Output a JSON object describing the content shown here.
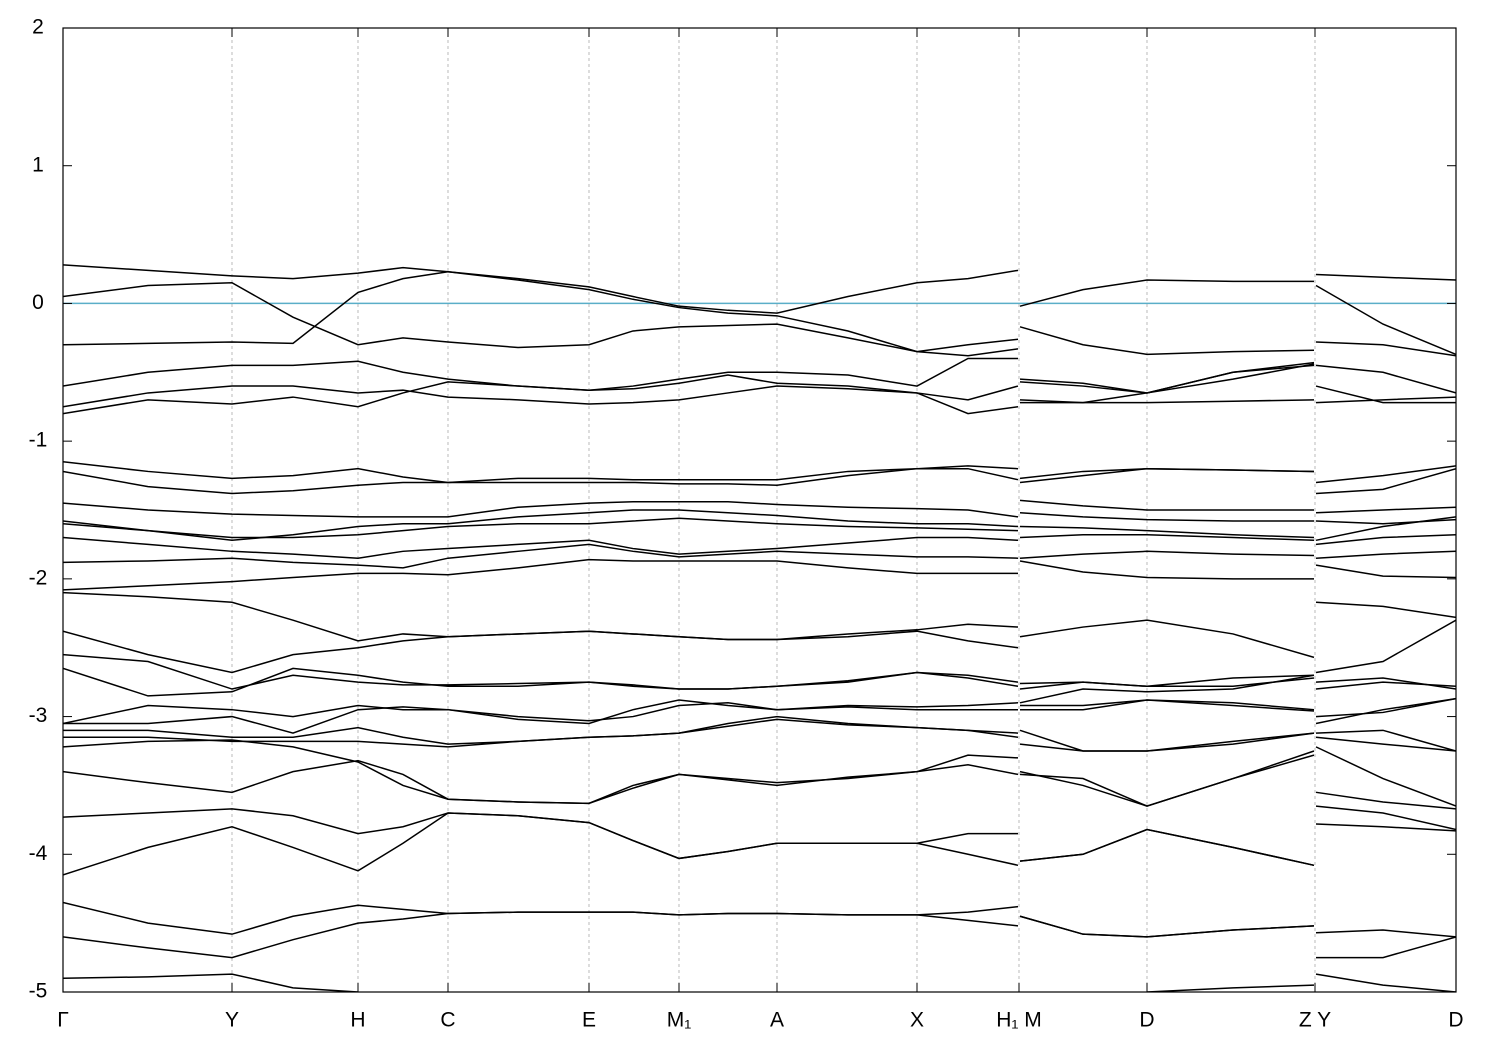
{
  "chart_data": {
    "type": "line",
    "color": "#000000",
    "fermi_level": 0,
    "fermi_color": "#5aaec8",
    "grid": "x",
    "xlim": [
      0,
      13.93
    ],
    "ylim": [
      -5,
      2
    ],
    "yticks": [
      2,
      1,
      0,
      -1,
      -2,
      -3,
      -4,
      -5
    ],
    "xticks": [
      {
        "value": 0,
        "label": "Γ"
      },
      {
        "value": 1.69,
        "label": "Y"
      },
      {
        "value": 2.95,
        "label": "H"
      },
      {
        "value": 3.85,
        "label": "C"
      },
      {
        "value": 5.26,
        "label": "E"
      },
      {
        "value": 6.16,
        "label": "M₁"
      },
      {
        "value": 7.14,
        "label": "A"
      },
      {
        "value": 8.54,
        "label": "X"
      },
      {
        "value": 9.56,
        "label": "H₁ M"
      },
      {
        "value": 10.84,
        "label": "D"
      },
      {
        "value": 12.52,
        "label": "Z Y"
      },
      {
        "value": 13.93,
        "label": "D"
      }
    ],
    "x": [
      0,
      0.85,
      1.69,
      2.3,
      2.95,
      3.4,
      3.85,
      4.55,
      5.26,
      5.7,
      6.16,
      6.65,
      7.14,
      7.85,
      8.54,
      9.05,
      9.55,
      9.56,
      9.57,
      10.2,
      10.84,
      11.7,
      12.51,
      12.52,
      12.53,
      13.2,
      13.93
    ],
    "series": [
      {
        "values": [
          0.28,
          0.24,
          0.2,
          0.18,
          0.22,
          0.26,
          0.23,
          0.18,
          0.12,
          0.05,
          -0.02,
          -0.05,
          -0.07,
          0.05,
          0.15,
          0.18,
          0.24,
          null,
          -0.02,
          0.1,
          0.17,
          0.16,
          0.16,
          null,
          0.21,
          0.19,
          0.17
        ]
      },
      {
        "values": [
          0.05,
          0.13,
          0.15,
          -0.1,
          -0.3,
          -0.25,
          -0.28,
          -0.32,
          -0.3,
          -0.2,
          -0.17,
          -0.16,
          -0.15,
          -0.25,
          -0.35,
          -0.3,
          -0.26,
          null,
          -0.17,
          -0.3,
          -0.37,
          -0.35,
          -0.34,
          null,
          0.13,
          -0.15,
          -0.37
        ]
      },
      {
        "values": [
          -0.3,
          -0.29,
          -0.28,
          -0.29,
          0.08,
          0.18,
          0.23,
          0.17,
          0.1,
          0.03,
          -0.03,
          -0.07,
          -0.09,
          -0.2,
          -0.35,
          -0.38,
          -0.33,
          null,
          -0.55,
          -0.58,
          -0.65,
          -0.5,
          -0.45,
          null,
          -0.28,
          -0.3,
          -0.38
        ]
      },
      {
        "values": [
          -0.6,
          -0.5,
          -0.45,
          -0.45,
          -0.42,
          -0.5,
          -0.55,
          -0.6,
          -0.63,
          -0.6,
          -0.55,
          -0.5,
          -0.5,
          -0.52,
          -0.6,
          -0.4,
          -0.4,
          null,
          -0.57,
          -0.6,
          -0.65,
          -0.5,
          -0.43,
          null,
          -0.45,
          -0.5,
          -0.65
        ]
      },
      {
        "values": [
          -0.75,
          -0.65,
          -0.6,
          -0.6,
          -0.65,
          -0.63,
          -0.68,
          -0.7,
          -0.73,
          -0.72,
          -0.7,
          -0.65,
          -0.6,
          -0.62,
          -0.65,
          -0.7,
          -0.6,
          null,
          -0.7,
          -0.72,
          -0.72,
          -0.71,
          -0.7,
          null,
          -0.6,
          -0.72,
          -0.72
        ]
      },
      {
        "values": [
          -0.8,
          -0.7,
          -0.73,
          -0.68,
          -0.75,
          -0.65,
          -0.57,
          -0.6,
          -0.63,
          -0.62,
          -0.58,
          -0.52,
          -0.58,
          -0.6,
          -0.65,
          -0.8,
          -0.75,
          null,
          -0.72,
          -0.72,
          -0.65,
          -0.55,
          -0.44,
          null,
          -0.72,
          -0.7,
          -0.68
        ]
      },
      {
        "values": [
          -1.15,
          -1.22,
          -1.27,
          -1.25,
          -1.2,
          -1.26,
          -1.3,
          -1.27,
          -1.27,
          -1.28,
          -1.28,
          -1.28,
          -1.28,
          -1.22,
          -1.2,
          -1.18,
          -1.2,
          null,
          -1.27,
          -1.22,
          -1.2,
          -1.21,
          -1.22,
          null,
          -1.3,
          -1.25,
          -1.18
        ]
      },
      {
        "values": [
          -1.22,
          -1.33,
          -1.38,
          -1.36,
          -1.32,
          -1.3,
          -1.3,
          -1.3,
          -1.3,
          -1.3,
          -1.31,
          -1.31,
          -1.32,
          -1.25,
          -1.2,
          -1.2,
          -1.28,
          null,
          -1.3,
          -1.25,
          -1.2,
          -1.21,
          -1.22,
          null,
          -1.38,
          -1.35,
          -1.2
        ]
      },
      {
        "values": [
          -1.45,
          -1.5,
          -1.53,
          -1.54,
          -1.55,
          -1.55,
          -1.55,
          -1.48,
          -1.45,
          -1.44,
          -1.44,
          -1.44,
          -1.46,
          -1.48,
          -1.49,
          -1.5,
          -1.55,
          null,
          -1.43,
          -1.47,
          -1.5,
          -1.5,
          -1.5,
          null,
          -1.52,
          -1.5,
          -1.48
        ]
      },
      {
        "values": [
          -1.58,
          -1.65,
          -1.72,
          -1.68,
          -1.62,
          -1.6,
          -1.6,
          -1.55,
          -1.52,
          -1.5,
          -1.5,
          -1.52,
          -1.54,
          -1.58,
          -1.6,
          -1.6,
          -1.62,
          null,
          -1.52,
          -1.55,
          -1.57,
          -1.58,
          -1.58,
          null,
          -1.58,
          -1.6,
          -1.57
        ]
      },
      {
        "values": [
          -1.6,
          -1.65,
          -1.7,
          -1.7,
          -1.68,
          -1.65,
          -1.62,
          -1.6,
          -1.6,
          -1.58,
          -1.56,
          -1.58,
          -1.6,
          -1.62,
          -1.63,
          -1.64,
          -1.65,
          null,
          -1.62,
          -1.63,
          -1.65,
          -1.68,
          -1.7,
          null,
          -1.72,
          -1.62,
          -1.55
        ]
      },
      {
        "values": [
          -1.7,
          -1.75,
          -1.8,
          -1.82,
          -1.85,
          -1.8,
          -1.78,
          -1.75,
          -1.72,
          -1.78,
          -1.82,
          -1.8,
          -1.78,
          -1.74,
          -1.7,
          -1.7,
          -1.72,
          null,
          -1.7,
          -1.68,
          -1.68,
          -1.7,
          -1.72,
          null,
          -1.75,
          -1.7,
          -1.68
        ]
      },
      {
        "values": [
          -1.88,
          -1.87,
          -1.85,
          -1.88,
          -1.9,
          -1.92,
          -1.85,
          -1.8,
          -1.75,
          -1.8,
          -1.84,
          -1.82,
          -1.8,
          -1.82,
          -1.84,
          -1.84,
          -1.85,
          null,
          -1.85,
          -1.82,
          -1.8,
          -1.82,
          -1.83,
          null,
          -1.85,
          -1.82,
          -1.8
        ]
      },
      {
        "values": [
          -2.08,
          -2.05,
          -2.02,
          -1.99,
          -1.96,
          -1.96,
          -1.97,
          -1.92,
          -1.86,
          -1.87,
          -1.87,
          -1.87,
          -1.87,
          -1.92,
          -1.96,
          -1.96,
          -1.96,
          null,
          -1.87,
          -1.95,
          -1.99,
          -2,
          -2,
          null,
          -1.9,
          -1.98,
          -1.99
        ]
      },
      {
        "values": [
          -2.1,
          -2.13,
          -2.17,
          -2.3,
          -2.45,
          -2.4,
          -2.42,
          -2.4,
          -2.38,
          -2.4,
          -2.42,
          -2.44,
          -2.44,
          -2.4,
          -2.37,
          -2.33,
          -2.35,
          null,
          -2.42,
          -2.35,
          -2.3,
          -2.4,
          -2.57,
          null,
          -2.17,
          -2.2,
          -2.28
        ]
      },
      {
        "values": [
          -2.38,
          -2.55,
          -2.68,
          -2.55,
          -2.5,
          -2.45,
          -2.42,
          -2.4,
          -2.38,
          -2.4,
          -2.42,
          -2.44,
          -2.44,
          -2.42,
          -2.38,
          -2.45,
          -2.5,
          null,
          -2.8,
          -2.75,
          -2.78,
          -2.72,
          -2.7,
          null,
          -2.68,
          -2.6,
          -2.3
        ]
      },
      {
        "values": [
          -2.55,
          -2.6,
          -2.8,
          -2.7,
          -2.75,
          -2.77,
          -2.77,
          -2.76,
          -2.75,
          -2.77,
          -2.8,
          -2.8,
          -2.78,
          -2.75,
          -2.68,
          -2.7,
          -2.75,
          null,
          -2.76,
          -2.75,
          -2.78,
          -2.78,
          -2.72,
          null,
          -2.8,
          -2.75,
          -2.78
        ]
      },
      {
        "values": [
          -2.65,
          -2.85,
          -2.82,
          -2.65,
          -2.7,
          -2.75,
          -2.78,
          -2.78,
          -2.75,
          -2.78,
          -2.8,
          -2.8,
          -2.78,
          -2.74,
          -2.68,
          -2.72,
          -2.78,
          null,
          -2.9,
          -2.8,
          -2.82,
          -2.8,
          -2.7,
          null,
          -2.75,
          -2.72,
          -2.8
        ]
      },
      {
        "values": [
          -3.05,
          -2.92,
          -2.95,
          -3,
          -2.92,
          -2.95,
          -2.95,
          -3.02,
          -3.05,
          -2.95,
          -2.88,
          -2.92,
          -2.95,
          -2.92,
          -2.93,
          -2.92,
          -2.9,
          null,
          -2.92,
          -2.92,
          -2.88,
          -2.9,
          -2.95,
          null,
          -3.05,
          -2.95,
          -2.87
        ]
      },
      {
        "values": [
          -3.05,
          -3.05,
          -3,
          -3.12,
          -2.95,
          -2.93,
          -2.95,
          -3,
          -3.03,
          -3,
          -2.92,
          -2.9,
          -2.95,
          -2.93,
          -2.95,
          -2.95,
          -2.95,
          null,
          -2.95,
          -2.95,
          -2.88,
          -2.92,
          -2.96,
          null,
          -3,
          -2.97,
          -2.87
        ]
      },
      {
        "values": [
          -3.1,
          -3.1,
          -3.15,
          -3.15,
          -3.08,
          -3.15,
          -3.2,
          -3.18,
          -3.15,
          -3.14,
          -3.12,
          -3.05,
          -3,
          -3.05,
          -3.08,
          -3.1,
          -3.15,
          null,
          -3.1,
          -3.25,
          -3.25,
          -3.18,
          -3.12,
          null,
          -3.12,
          -3.1,
          -3.25
        ]
      },
      {
        "values": [
          -3.15,
          -3.15,
          -3.18,
          -3.18,
          -3.18,
          -3.2,
          -3.22,
          -3.18,
          -3.15,
          -3.14,
          -3.12,
          -3.07,
          -3.02,
          -3.06,
          -3.08,
          -3.1,
          -3.12,
          null,
          -3.2,
          -3.25,
          -3.25,
          -3.2,
          -3.12,
          null,
          -3.15,
          -3.2,
          -3.25
        ]
      },
      {
        "values": [
          -3.22,
          -3.18,
          -3.17,
          -3.22,
          -3.33,
          -3.5,
          -3.6,
          -3.62,
          -3.63,
          -3.5,
          -3.42,
          -3.45,
          -3.48,
          -3.45,
          -3.4,
          -3.28,
          -3.3,
          null,
          -3.4,
          -3.5,
          -3.65,
          -3.45,
          -3.28,
          null,
          -3.22,
          -3.45,
          -3.65
        ]
      },
      {
        "values": [
          -3.4,
          -3.48,
          -3.55,
          -3.4,
          -3.32,
          -3.42,
          -3.6,
          -3.62,
          -3.63,
          -3.52,
          -3.42,
          -3.46,
          -3.5,
          -3.44,
          -3.4,
          -3.35,
          -3.42,
          null,
          -3.42,
          -3.45,
          -3.65,
          -3.45,
          -3.25,
          null,
          -3.55,
          -3.62,
          -3.67
        ]
      },
      {
        "values": [
          -3.73,
          -3.7,
          -3.67,
          -3.72,
          -3.85,
          -3.8,
          -3.7,
          -3.72,
          -3.77,
          -3.9,
          -4.03,
          -3.98,
          -3.92,
          -3.92,
          -3.92,
          -3.85,
          -3.85,
          null,
          -4.05,
          -4,
          -3.82,
          -3.95,
          -4.08,
          null,
          -3.65,
          -3.7,
          -3.82
        ]
      },
      {
        "values": [
          -4.15,
          -3.95,
          -3.8,
          -3.95,
          -4.12,
          -3.92,
          -3.7,
          -3.72,
          -3.77,
          -3.9,
          -4.03,
          -3.98,
          -3.92,
          -3.92,
          -3.92,
          -4,
          -4.08,
          null,
          -4.05,
          -4,
          -3.82,
          -3.95,
          -4.08,
          null,
          -3.78,
          -3.8,
          -3.83
        ]
      },
      {
        "values": [
          -4.35,
          -4.5,
          -4.58,
          -4.45,
          -4.37,
          -4.4,
          -4.43,
          -4.42,
          -4.42,
          -4.42,
          -4.44,
          -4.43,
          -4.43,
          -4.44,
          -4.44,
          -4.42,
          -4.38,
          null,
          -4.45,
          -4.58,
          -4.6,
          -4.55,
          -4.52,
          null,
          -4.57,
          -4.55,
          -4.6
        ]
      },
      {
        "values": [
          -4.6,
          -4.68,
          -4.75,
          -4.62,
          -4.5,
          -4.47,
          -4.43,
          -4.42,
          -4.42,
          -4.42,
          -4.44,
          -4.43,
          -4.43,
          -4.44,
          -4.44,
          -4.48,
          -4.52,
          null,
          -4.45,
          -4.58,
          -4.6,
          -4.55,
          -4.52,
          null,
          -4.75,
          -4.75,
          -4.6
        ]
      },
      {
        "values": [
          -4.9,
          -4.89,
          -4.87,
          -4.97,
          -5,
          null,
          null,
          null,
          null,
          null,
          null,
          null,
          null,
          null,
          null,
          null,
          null,
          null,
          null,
          null,
          -5,
          -4.97,
          -4.95,
          null,
          -4.87,
          -4.95,
          -5
        ]
      }
    ]
  }
}
